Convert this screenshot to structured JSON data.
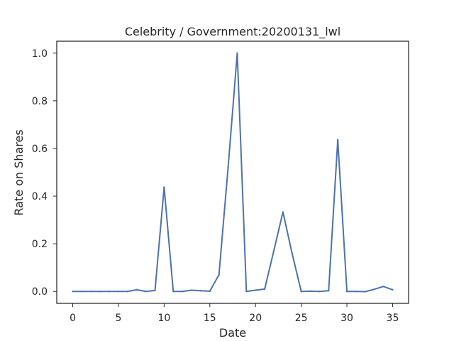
{
  "chart_data": {
    "type": "line",
    "title": "Celebrity / Government:20200131_lwl",
    "xlabel": "Date",
    "ylabel": "Rate on Shares",
    "xlim": [
      -1.75,
      36.75
    ],
    "ylim": [
      -0.05,
      1.05
    ],
    "x_ticks": [
      0,
      5,
      10,
      15,
      20,
      25,
      30,
      35
    ],
    "x_tick_labels": [
      "0",
      "5",
      "10",
      "15",
      "20",
      "25",
      "30",
      "35"
    ],
    "y_ticks": [
      0.0,
      0.2,
      0.4,
      0.6,
      0.8,
      1.0
    ],
    "y_tick_labels": [
      "0.0",
      "0.2",
      "0.4",
      "0.6",
      "0.8",
      "1.0"
    ],
    "grid": false,
    "color": "#4c72b0",
    "x": [
      0,
      1,
      2,
      3,
      4,
      5,
      6,
      7,
      8,
      9,
      10,
      11,
      12,
      13,
      14,
      15,
      16,
      17,
      18,
      19,
      20,
      21,
      22,
      23,
      24,
      25,
      26,
      27,
      28,
      29,
      30,
      31,
      32,
      33,
      34,
      35
    ],
    "y": [
      0.0,
      0.0,
      0.0,
      0.0,
      0.0,
      0.0,
      0.0,
      0.007,
      0.0,
      0.004,
      0.437,
      0.0,
      0.0,
      0.005,
      0.003,
      0.001,
      0.07,
      0.52,
      1.0,
      0.0,
      0.005,
      0.01,
      0.17,
      0.333,
      0.16,
      0.0,
      0.001,
      0.0,
      0.003,
      0.636,
      0.0,
      0.0,
      -0.001,
      0.009,
      0.021,
      0.007
    ]
  }
}
